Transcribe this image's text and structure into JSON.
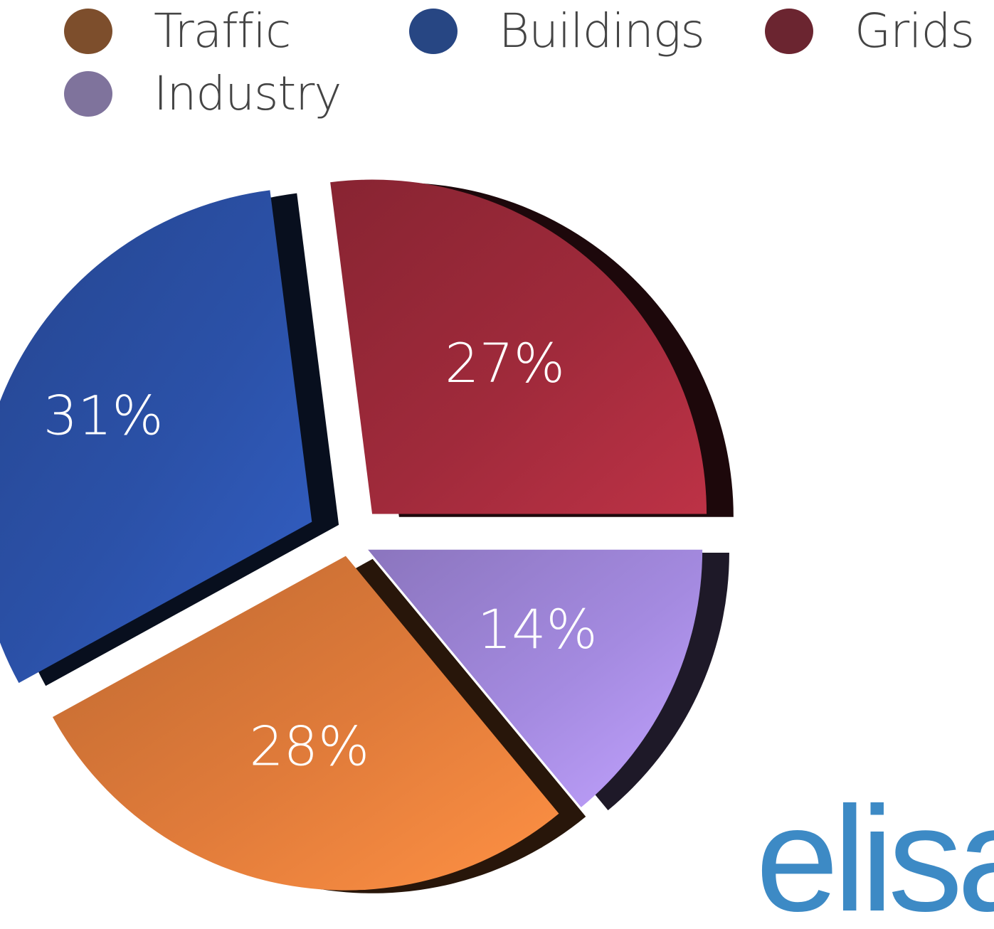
{
  "chart_data": {
    "type": "pie",
    "categories": [
      "Traffic",
      "Buildings",
      "Grids",
      "Industry"
    ],
    "values": [
      28,
      31,
      27,
      14
    ],
    "value_labels": [
      "28%",
      "31%",
      "27%",
      "14%"
    ],
    "colors": [
      "#e07b3a",
      "#2b51a8",
      "#a02a3b",
      "#a48ae0"
    ],
    "legend_colors": [
      "#7d4e2c",
      "#274683",
      "#6b2530",
      "#7f739c"
    ],
    "legend": {
      "position": "top"
    },
    "exploded": true,
    "style": "3d"
  },
  "legend": {
    "items": [
      {
        "label": "Traffic",
        "icon": "circle-swatch"
      },
      {
        "label": "Buildings",
        "icon": "circle-swatch"
      },
      {
        "label": "Grids",
        "icon": "circle-swatch"
      },
      {
        "label": "Industry",
        "icon": "circle-swatch"
      }
    ]
  },
  "logo": {
    "text": "elisa",
    "color": "#3d8ac5"
  }
}
